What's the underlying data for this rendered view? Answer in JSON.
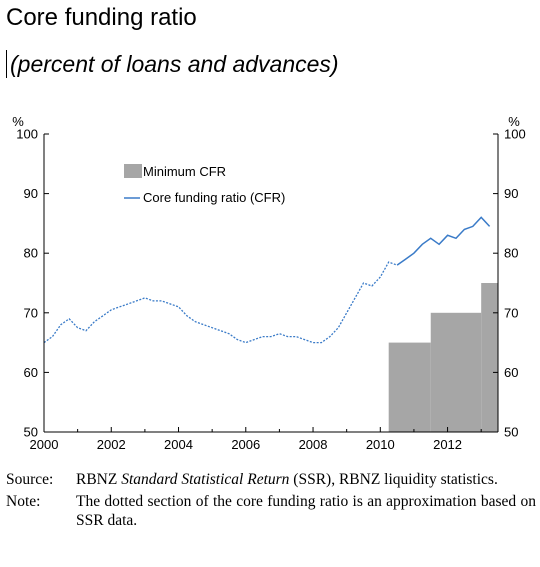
{
  "chart_data": {
    "type": "bar+line",
    "title": "Core funding ratio",
    "subtitle": "(percent of loans and advances)",
    "ylabel_left": "%",
    "ylabel_right": "%",
    "ylim": [
      50,
      100
    ],
    "yticks": [
      50,
      60,
      70,
      80,
      90,
      100
    ],
    "xlim": [
      2000,
      2013.5
    ],
    "xticks": [
      "2000",
      "2002",
      "2004",
      "2006",
      "2008",
      "2010",
      "2012"
    ],
    "legend": {
      "placement": "top-left"
    },
    "grid": false,
    "series": [
      {
        "name": "Minimum CFR",
        "kind": "step-bar",
        "color": "#a6a6a6",
        "segments": [
          {
            "start": 2010.25,
            "end": 2011.5,
            "value": 65
          },
          {
            "start": 2011.5,
            "end": 2013.0,
            "value": 70
          },
          {
            "start": 2013.0,
            "end": 2013.5,
            "value": 75
          }
        ]
      },
      {
        "name": "Core funding ratio (CFR)",
        "kind": "line",
        "color": "#3a7bc8",
        "dotted_until": 2010.5,
        "points": [
          [
            2000.0,
            65.0
          ],
          [
            2000.25,
            66.0
          ],
          [
            2000.5,
            68.0
          ],
          [
            2000.75,
            69.0
          ],
          [
            2001.0,
            67.5
          ],
          [
            2001.25,
            67.0
          ],
          [
            2001.5,
            68.5
          ],
          [
            2001.75,
            69.5
          ],
          [
            2002.0,
            70.5
          ],
          [
            2002.25,
            71.0
          ],
          [
            2002.5,
            71.5
          ],
          [
            2002.75,
            72.0
          ],
          [
            2003.0,
            72.5
          ],
          [
            2003.25,
            72.0
          ],
          [
            2003.5,
            72.0
          ],
          [
            2003.75,
            71.5
          ],
          [
            2004.0,
            71.0
          ],
          [
            2004.25,
            69.5
          ],
          [
            2004.5,
            68.5
          ],
          [
            2004.75,
            68.0
          ],
          [
            2005.0,
            67.5
          ],
          [
            2005.25,
            67.0
          ],
          [
            2005.5,
            66.5
          ],
          [
            2005.75,
            65.5
          ],
          [
            2006.0,
            65.0
          ],
          [
            2006.25,
            65.5
          ],
          [
            2006.5,
            66.0
          ],
          [
            2006.75,
            66.0
          ],
          [
            2007.0,
            66.5
          ],
          [
            2007.25,
            66.0
          ],
          [
            2007.5,
            66.0
          ],
          [
            2007.75,
            65.5
          ],
          [
            2008.0,
            65.0
          ],
          [
            2008.25,
            65.0
          ],
          [
            2008.5,
            66.0
          ],
          [
            2008.75,
            67.5
          ],
          [
            2009.0,
            70.0
          ],
          [
            2009.25,
            72.5
          ],
          [
            2009.5,
            75.0
          ],
          [
            2009.75,
            74.5
          ],
          [
            2010.0,
            76.0
          ],
          [
            2010.25,
            78.5
          ],
          [
            2010.5,
            78.0
          ],
          [
            2010.75,
            79.0
          ],
          [
            2011.0,
            80.0
          ],
          [
            2011.25,
            81.5
          ],
          [
            2011.5,
            82.5
          ],
          [
            2011.75,
            81.5
          ],
          [
            2012.0,
            83.0
          ],
          [
            2012.25,
            82.5
          ],
          [
            2012.5,
            84.0
          ],
          [
            2012.75,
            84.5
          ],
          [
            2013.0,
            86.0
          ],
          [
            2013.25,
            84.5
          ]
        ]
      }
    ]
  },
  "notes": {
    "source_label": "Source:",
    "source_text_1": "RBNZ ",
    "source_text_italic": "Standard Statistical Return",
    "source_text_2": " (SSR), RBNZ liquidity statistics.",
    "note_label": "Note:",
    "note_text": "The dotted section of the core funding ratio is an approximation based on SSR data."
  }
}
